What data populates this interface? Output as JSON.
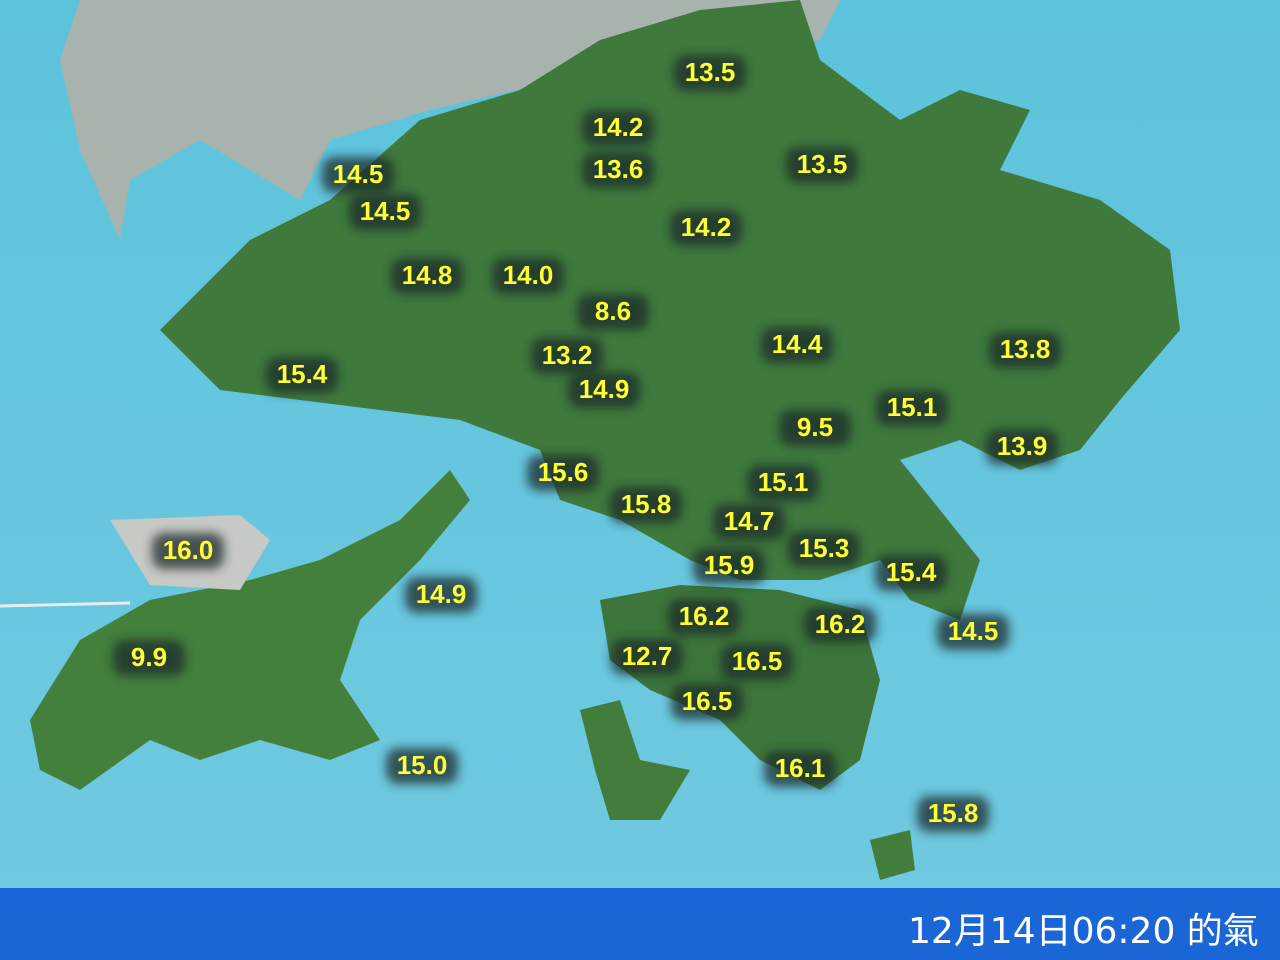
{
  "readings": [
    "13.5",
    "14.2",
    "13.6",
    "13.5",
    "14.5",
    "14.5",
    "14.2",
    "14.8",
    "14.0",
    "8.6",
    "14.4",
    "13.8",
    "13.2",
    "15.4",
    "14.9",
    "15.1",
    "9.5",
    "13.9",
    "15.6",
    "15.1",
    "15.8",
    "14.7",
    "16.0",
    "15.3",
    "15.9",
    "15.4",
    "14.9",
    "16.2",
    "16.2",
    "14.5",
    "12.7",
    "9.9",
    "16.5",
    "16.5",
    "15.0",
    "16.1",
    "15.8"
  ],
  "footer": {
    "timestamp": "12月14日06:20 的氣"
  }
}
